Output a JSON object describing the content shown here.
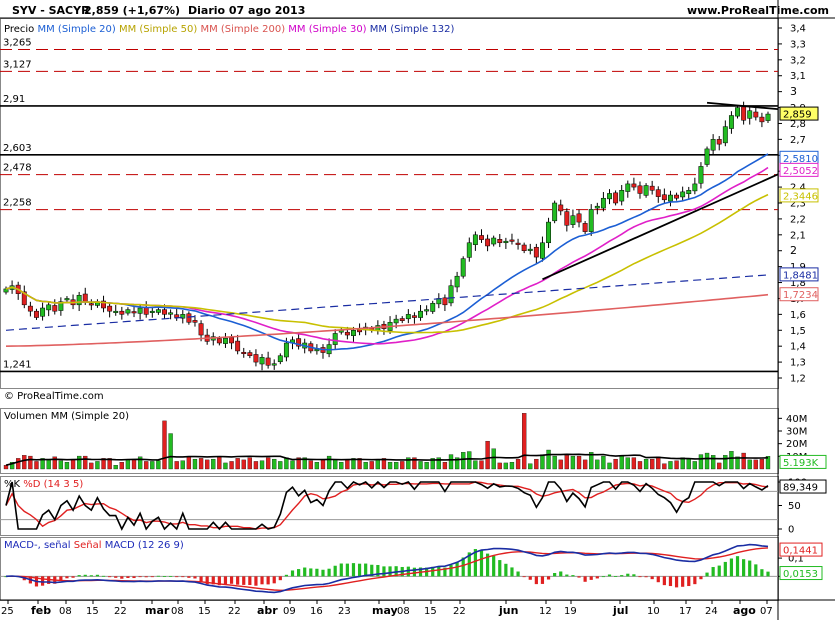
{
  "header": {
    "ticker": "SYV - SACYR",
    "price_change": "2,859 (+1,67%)",
    "period_date": "Diario  07 ago 2013",
    "site": "www.ProRealTime.com"
  },
  "legend_price": {
    "label": "Precio",
    "mm20": "MM (Simple 20)",
    "mm50": "MM (Simple 50)",
    "mm200": "MM (Simple 200)",
    "mm30": "MM (Simple 30)",
    "mm132": "MM (Simple 132)"
  },
  "legend_volume": {
    "label": "Volumen",
    "mm": "MM (Simple 20)"
  },
  "legend_stoch": {
    "k": "%K",
    "d": "%D (14 3 5)"
  },
  "legend_macd": {
    "macd": "MACD-, señal",
    "signal": "Señal",
    "params": "MACD (12 26 9)"
  },
  "copyright": "© ProRealTime.com",
  "colors": {
    "mm20": "#1c5fd4",
    "mm50": "#c8c000",
    "mm200": "#e06060",
    "mm30": "#e020c8",
    "mm132": "#1a2da3",
    "up": "#22bb22",
    "down": "#e02020",
    "support": "#c00000"
  },
  "chart_data": [
    {
      "type": "candlestick",
      "title": "SYV - SACYR",
      "y_ticks": [
        "3,4",
        "3,3",
        "3,2",
        "3,1",
        "3",
        "2,9",
        "2,8",
        "2,7",
        "2,6",
        "2,5",
        "2,4",
        "2,3",
        "2,2",
        "2,1",
        "2",
        "1,9",
        "1,8",
        "1,7",
        "1,6",
        "1,5",
        "1,4",
        "1,3",
        "1,2"
      ],
      "ylim": [
        1.2,
        3.4
      ],
      "x_ticks": [
        "25",
        "feb",
        "08",
        "15",
        "22",
        "mar",
        "08",
        "15",
        "22",
        "abr",
        "09",
        "16",
        "23",
        "may",
        "08",
        "15",
        "22",
        "jun",
        "12",
        "19",
        "jul",
        "10",
        "17",
        "24",
        "ago",
        "07"
      ],
      "horizontal_levels": [
        {
          "value": 3.265,
          "label": "3,265",
          "style": "dashed-red"
        },
        {
          "value": 3.127,
          "label": "3,127",
          "style": "dashed-red"
        },
        {
          "value": 2.91,
          "label": "2,91",
          "style": "solid-black"
        },
        {
          "value": 2.603,
          "label": "2,603",
          "style": "solid-black"
        },
        {
          "value": 2.478,
          "label": "2,478",
          "style": "dashed-red"
        },
        {
          "value": 2.258,
          "label": "2,258",
          "style": "dashed-red"
        },
        {
          "value": 1.241,
          "label": "1,241",
          "style": "solid-black"
        }
      ],
      "last_values": [
        {
          "name": "Precio",
          "value": "2,859"
        },
        {
          "name": "MM (Simple 20)",
          "value": "2,5810"
        },
        {
          "name": "MM (Simple 30)",
          "value": "2,5052"
        },
        {
          "name": "MM (Simple 50)",
          "value": "2,3446"
        },
        {
          "name": "MM (Simple 132)",
          "value": "1,8481"
        },
        {
          "name": "MM (Simple 200)",
          "value": "1,7234"
        }
      ],
      "close_series": [
        1.76,
        1.78,
        1.73,
        1.66,
        1.62,
        1.58,
        1.64,
        1.66,
        1.62,
        1.68,
        1.7,
        1.66,
        1.72,
        1.68,
        1.66,
        1.68,
        1.64,
        1.62,
        1.62,
        1.6,
        1.63,
        1.61,
        1.64,
        1.6,
        1.62,
        1.63,
        1.6,
        1.61,
        1.58,
        1.6,
        1.55,
        1.55,
        1.47,
        1.43,
        1.46,
        1.42,
        1.45,
        1.42,
        1.37,
        1.36,
        1.34,
        1.3,
        1.33,
        1.28,
        1.29,
        1.34,
        1.42,
        1.44,
        1.4,
        1.42,
        1.37,
        1.38,
        1.36,
        1.41,
        1.48,
        1.5,
        1.47,
        1.5,
        1.49,
        1.52,
        1.5,
        1.53,
        1.51,
        1.55,
        1.57,
        1.56,
        1.6,
        1.58,
        1.62,
        1.63,
        1.67,
        1.7,
        1.66,
        1.78,
        1.84,
        1.95,
        2.05,
        2.1,
        2.07,
        2.03,
        2.08,
        2.05,
        2.06,
        2.06,
        2.04,
        2.0,
        2.01,
        1.96,
        2.05,
        2.18,
        2.3,
        2.25,
        2.16,
        2.22,
        2.18,
        2.12,
        2.26,
        2.28,
        2.33,
        2.36,
        2.3,
        2.38,
        2.42,
        2.4,
        2.36,
        2.41,
        2.38,
        2.34,
        2.32,
        2.35,
        2.33,
        2.37,
        2.38,
        2.42,
        2.53,
        2.64,
        2.7,
        2.67,
        2.78,
        2.85,
        2.9,
        2.82,
        2.88,
        2.84,
        2.81,
        2.859
      ],
      "tick_labels_values": [
        "1,2",
        "1,3",
        "1,4",
        "1,5",
        "1,7234",
        "1,8481",
        "2",
        "2,1",
        "2,2",
        "2,3",
        "2,3446",
        "2,4",
        "2,5052",
        "2,5810",
        "2,6",
        "2,7",
        "2,8",
        "2,859",
        "2,9",
        "3",
        "3,1",
        "3,2",
        "3,3",
        "3,4"
      ]
    },
    {
      "type": "bar",
      "title": "Volumen",
      "y_ticks": [
        "40M",
        "30M",
        "20M",
        "10M"
      ],
      "last_value": "5.193K",
      "ylim": [
        0,
        45
      ],
      "unit": "M"
    },
    {
      "type": "line",
      "title": "%K %D (14 3 5)",
      "y_ticks": [
        "100",
        "50",
        "0"
      ],
      "ylim": [
        0,
        100
      ],
      "last_value": "89,349"
    },
    {
      "type": "line",
      "title": "MACD (12 26 9)",
      "y_ticks": [
        "0,1",
        "0"
      ],
      "last_values": [
        "0,1441",
        "0,0153"
      ]
    }
  ]
}
